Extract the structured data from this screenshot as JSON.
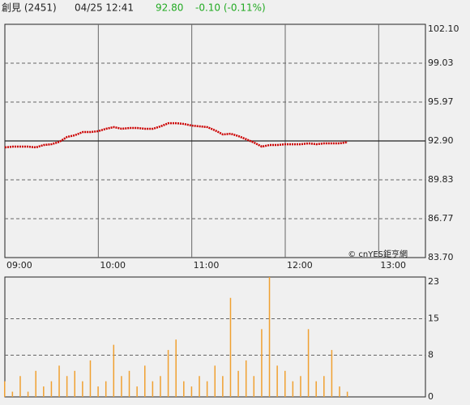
{
  "header": {
    "name": "創見 (2451)",
    "time": "04/25 12:41",
    "price": {
      "value": 92.8,
      "label": "92.80"
    },
    "change": "-0.10 (-0.11%)"
  },
  "watermark": "© cnYES鉅亨網",
  "chart_data": [
    {
      "type": "line",
      "x": [
        "09:00",
        "09:05",
        "09:10",
        "09:15",
        "09:20",
        "09:25",
        "09:30",
        "09:35",
        "09:40",
        "09:45",
        "09:50",
        "09:55",
        "10:00",
        "10:05",
        "10:10",
        "10:15",
        "10:20",
        "10:25",
        "10:30",
        "10:35",
        "10:40",
        "10:45",
        "10:50",
        "10:55",
        "11:00",
        "11:05",
        "11:10",
        "11:15",
        "11:20",
        "11:25",
        "11:30",
        "11:35",
        "11:40",
        "11:45",
        "11:50",
        "11:55",
        "12:00",
        "12:05",
        "12:10",
        "12:15",
        "12:20",
        "12:25",
        "12:30",
        "12:35",
        "12:40"
      ],
      "series": [
        {
          "color": "#cc0000",
          "values": [
            92.39,
            92.45,
            92.45,
            92.45,
            92.39,
            92.58,
            92.64,
            92.83,
            93.22,
            93.35,
            93.6,
            93.6,
            93.67,
            93.86,
            93.99,
            93.86,
            93.92,
            93.92,
            93.86,
            93.86,
            94.05,
            94.3,
            94.3,
            94.24,
            94.11,
            94.05,
            93.99,
            93.73,
            93.41,
            93.47,
            93.28,
            93.03,
            92.77,
            92.45,
            92.58,
            92.58,
            92.64,
            92.64,
            92.64,
            92.71,
            92.64,
            92.71,
            92.71,
            92.71,
            92.8
          ]
        }
      ],
      "prev_close": 92.9,
      "xlim": [
        "09:00",
        "13:30"
      ],
      "xticks": [
        "09:00",
        "10:00",
        "11:00",
        "12:00",
        "13:00"
      ],
      "ylim": [
        83.7,
        102.1
      ],
      "yticks": [
        {
          "value": 83.7,
          "label": "83.70"
        },
        86.77,
        89.83,
        {
          "value": 92.9,
          "label": "92.90"
        },
        95.97,
        99.03,
        {
          "value": 102.1,
          "label": "102.10"
        }
      ],
      "grid": true
    },
    {
      "type": "bar",
      "x": [
        "09:00",
        "09:05",
        "09:10",
        "09:15",
        "09:20",
        "09:25",
        "09:30",
        "09:35",
        "09:40",
        "09:45",
        "09:50",
        "09:55",
        "10:00",
        "10:05",
        "10:10",
        "10:15",
        "10:20",
        "10:25",
        "10:30",
        "10:35",
        "10:40",
        "10:45",
        "10:50",
        "10:55",
        "11:00",
        "11:05",
        "11:10",
        "11:15",
        "11:20",
        "11:25",
        "11:30",
        "11:35",
        "11:40",
        "11:45",
        "11:50",
        "11:55",
        "12:00",
        "12:05",
        "12:10",
        "12:15",
        "12:20",
        "12:25",
        "12:30",
        "12:35",
        "12:40"
      ],
      "series": [
        {
          "color": "#f0a030",
          "values": [
            3,
            1,
            4,
            1,
            5,
            2,
            3,
            6,
            4,
            5,
            3,
            7,
            2,
            3,
            10,
            4,
            5,
            2,
            6,
            3,
            4,
            9,
            11,
            3,
            2,
            4,
            3,
            6,
            4,
            19,
            5,
            7,
            4,
            13,
            23,
            6,
            5,
            3,
            4,
            13,
            3,
            4,
            9,
            2,
            1
          ]
        }
      ],
      "xlim": [
        "09:00",
        "13:30"
      ],
      "ylim": [
        0,
        23
      ],
      "yticks": [
        0,
        8,
        15,
        23
      ],
      "grid": true
    }
  ]
}
